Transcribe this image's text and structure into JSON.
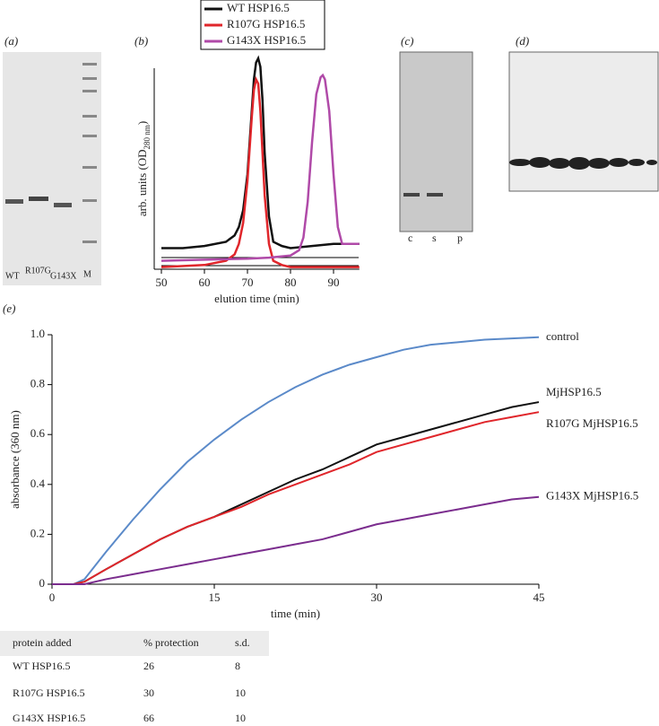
{
  "panels": {
    "a": {
      "label": "(a)",
      "lanes": [
        "WT",
        "R107G",
        "G143X",
        "M"
      ]
    },
    "b": {
      "label": "(b)"
    },
    "c": {
      "label": "(c)",
      "lanes": [
        "c",
        "s",
        "p"
      ]
    },
    "d": {
      "label": "(d)"
    },
    "e": {
      "label": "(e)"
    }
  },
  "chart_data": [
    {
      "type": "line",
      "panel": "b",
      "xlabel": "elution time (min)",
      "ylabel": [
        "arb. units (OD",
        "280 nm",
        ")"
      ],
      "xlim": [
        50,
        96
      ],
      "xticks": [
        50,
        60,
        70,
        80,
        90
      ],
      "ylim": [
        0,
        1
      ],
      "legend": "top",
      "series": [
        {
          "name": "WT HSP16.5",
          "color": "#111111",
          "x": [
            50,
            55,
            60,
            65,
            67,
            68,
            69,
            70,
            71,
            71.5,
            72,
            72.5,
            73,
            73.5,
            74,
            75,
            76,
            78,
            80,
            85,
            90,
            96
          ],
          "values": [
            0.1,
            0.1,
            0.11,
            0.13,
            0.16,
            0.2,
            0.28,
            0.45,
            0.75,
            0.9,
            0.98,
            1.0,
            0.96,
            0.8,
            0.55,
            0.25,
            0.13,
            0.11,
            0.1,
            0.11,
            0.12,
            0.12
          ]
        },
        {
          "name": "R107G HSP16.5",
          "color": "#e0262b",
          "x": [
            50,
            60,
            65,
            67,
            68,
            69,
            70,
            71,
            71.5,
            72,
            72.5,
            73,
            73.5,
            74,
            75,
            76,
            78,
            80,
            96
          ],
          "values": [
            0.01,
            0.02,
            0.04,
            0.07,
            0.12,
            0.22,
            0.42,
            0.72,
            0.85,
            0.9,
            0.88,
            0.75,
            0.55,
            0.35,
            0.12,
            0.04,
            0.02,
            0.01,
            0.01
          ]
        },
        {
          "name": "G143X HSP16.5",
          "color": "#b04aa8",
          "x": [
            50,
            60,
            70,
            75,
            80,
            82,
            83,
            84,
            85,
            86,
            87,
            87.5,
            88,
            89,
            90,
            91,
            92,
            94,
            96
          ],
          "values": [
            0.04,
            0.045,
            0.05,
            0.055,
            0.065,
            0.09,
            0.15,
            0.32,
            0.6,
            0.83,
            0.91,
            0.92,
            0.9,
            0.75,
            0.45,
            0.2,
            0.12,
            0.12,
            0.12
          ]
        }
      ]
    },
    {
      "type": "line",
      "panel": "e",
      "xlabel": "time (min)",
      "ylabel": "absorbance (360 nm)",
      "xlim": [
        0,
        45
      ],
      "xticks": [
        0,
        15,
        30,
        45
      ],
      "ylim": [
        0,
        1
      ],
      "yticks": [
        0,
        0.2,
        0.4,
        0.6,
        0.8,
        {
          "value": 1,
          "label": "1.0"
        }
      ],
      "x": [
        0,
        2,
        3,
        5,
        7.5,
        10,
        12.5,
        15,
        17.5,
        20,
        22.5,
        25,
        27.5,
        30,
        32.5,
        35,
        37.5,
        40,
        42.5,
        45
      ],
      "series": [
        {
          "name": "control",
          "color": "#5b8ac9",
          "values": [
            0,
            0,
            0.02,
            0.13,
            0.26,
            0.38,
            0.49,
            0.58,
            0.66,
            0.73,
            0.79,
            0.84,
            0.88,
            0.91,
            0.94,
            0.96,
            0.97,
            0.98,
            0.985,
            0.99
          ]
        },
        {
          "name": "MjHSP16.5",
          "color": "#111111",
          "values": [
            0,
            0,
            0.01,
            0.06,
            0.12,
            0.18,
            0.23,
            0.27,
            0.32,
            0.37,
            0.42,
            0.46,
            0.51,
            0.56,
            0.59,
            0.62,
            0.65,
            0.68,
            0.71,
            0.73
          ]
        },
        {
          "name": "R107G MjHSP16.5",
          "color": "#e0262b",
          "values": [
            0,
            0,
            0.01,
            0.06,
            0.12,
            0.18,
            0.23,
            0.27,
            0.31,
            0.36,
            0.4,
            0.44,
            0.48,
            0.53,
            0.56,
            0.59,
            0.62,
            0.65,
            0.67,
            0.69
          ]
        },
        {
          "name": "G143X MjHSP16.5",
          "color": "#7b2d8e",
          "values": [
            0,
            0,
            0,
            0.02,
            0.04,
            0.06,
            0.08,
            0.1,
            0.12,
            0.14,
            0.16,
            0.18,
            0.21,
            0.24,
            0.26,
            0.28,
            0.3,
            0.32,
            0.34,
            0.35
          ]
        }
      ]
    }
  ],
  "table": {
    "header": [
      "protein added",
      "% protection",
      "s.d."
    ],
    "rows": [
      [
        "WT HSP16.5",
        26,
        8
      ],
      [
        "R107G HSP16.5",
        30,
        10
      ],
      [
        "G143X HSP16.5",
        66,
        10
      ]
    ]
  }
}
